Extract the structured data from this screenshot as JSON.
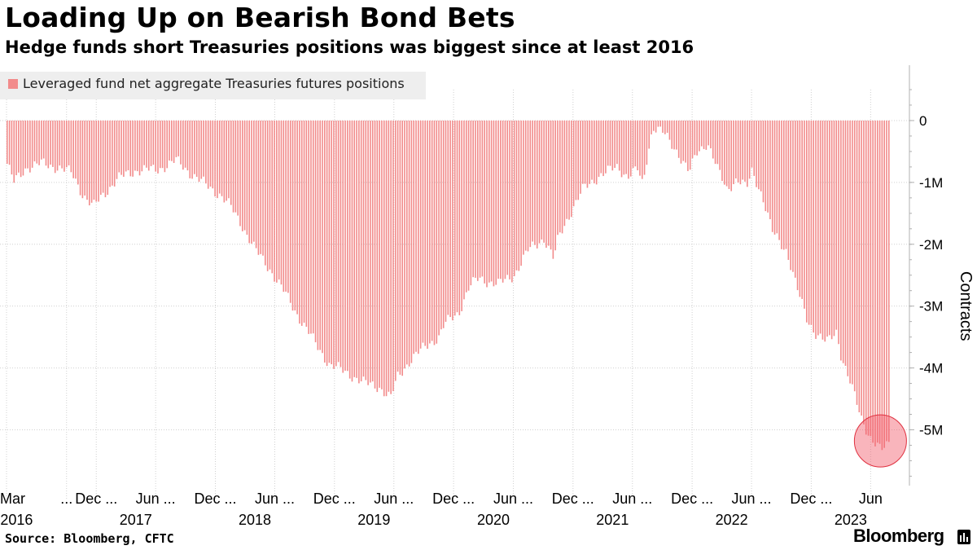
{
  "title": "Loading Up on Bearish Bond Bets",
  "subtitle": "Hedge funds short Treasuries positions was biggest since at least 2016",
  "source": "Source: Bloomberg, CFTC",
  "brand": "Bloomberg",
  "brand_icon": "bloomberg-terminal-icon",
  "colors": {
    "bar": "#f28b8b",
    "highlight_circle": "#f25a6a",
    "grid": "#d0d0d0",
    "legend_bg": "#eeeeee",
    "axis": "#b0b0b0"
  },
  "chart_data": {
    "type": "bar",
    "series": [
      {
        "name": "Leveraged fund net aggregate Treasuries futures positions",
        "anchors": [
          [
            "2016-03-01",
            -0.7
          ],
          [
            "2016-03-22",
            -1.0
          ],
          [
            "2016-05-01",
            -0.75
          ],
          [
            "2016-06-15",
            -0.7
          ],
          [
            "2016-08-01",
            -0.75
          ],
          [
            "2016-09-15",
            -0.85
          ],
          [
            "2016-10-20",
            -1.2
          ],
          [
            "2016-11-20",
            -1.4
          ],
          [
            "2016-12-20",
            -1.2
          ],
          [
            "2017-02-01",
            -0.95
          ],
          [
            "2017-04-01",
            -0.8
          ],
          [
            "2017-06-01",
            -0.8
          ],
          [
            "2017-08-01",
            -0.65
          ],
          [
            "2017-09-15",
            -0.85
          ],
          [
            "2017-11-01",
            -1.05
          ],
          [
            "2017-12-15",
            -1.2
          ],
          [
            "2018-01-15",
            -1.4
          ],
          [
            "2018-02-20",
            -1.7
          ],
          [
            "2018-04-01",
            -2.1
          ],
          [
            "2018-05-15",
            -2.4
          ],
          [
            "2018-07-01",
            -2.8
          ],
          [
            "2018-08-15",
            -3.2
          ],
          [
            "2018-10-01",
            -3.6
          ],
          [
            "2018-11-15",
            -3.95
          ],
          [
            "2019-01-15",
            -4.1
          ],
          [
            "2019-03-01",
            -4.25
          ],
          [
            "2019-04-15",
            -4.3
          ],
          [
            "2019-05-20",
            -4.5
          ],
          [
            "2019-06-10",
            -4.15
          ],
          [
            "2019-07-15",
            -3.9
          ],
          [
            "2019-09-15",
            -3.6
          ],
          [
            "2019-10-15",
            -3.5
          ],
          [
            "2019-11-01",
            -3.3
          ],
          [
            "2019-12-15",
            -3.1
          ],
          [
            "2020-01-15",
            -2.7
          ],
          [
            "2020-02-15",
            -2.55
          ],
          [
            "2020-03-15",
            -2.6
          ],
          [
            "2020-04-15",
            -2.65
          ],
          [
            "2020-06-01",
            -2.5
          ],
          [
            "2020-07-15",
            -2.1
          ],
          [
            "2020-09-01",
            -1.9
          ],
          [
            "2020-10-01",
            -2.25
          ],
          [
            "2020-10-15",
            -1.9
          ],
          [
            "2020-11-15",
            -1.55
          ],
          [
            "2021-01-01",
            -1.1
          ],
          [
            "2021-02-15",
            -0.9
          ],
          [
            "2021-04-15",
            -0.75
          ],
          [
            "2021-05-15",
            -0.9
          ],
          [
            "2021-06-15",
            -0.8
          ],
          [
            "2021-07-01",
            -1.05
          ],
          [
            "2021-07-15",
            -0.55
          ],
          [
            "2021-08-01",
            -0.1
          ],
          [
            "2021-09-01",
            -0.2
          ],
          [
            "2021-10-15",
            -0.5
          ],
          [
            "2021-11-20",
            -0.85
          ],
          [
            "2021-12-15",
            -0.5
          ],
          [
            "2022-01-15",
            -0.35
          ],
          [
            "2022-02-15",
            -0.8
          ],
          [
            "2022-03-15",
            -1.1
          ],
          [
            "2022-04-15",
            -0.95
          ],
          [
            "2022-05-15",
            -1.1
          ],
          [
            "2022-06-01",
            -0.8
          ],
          [
            "2022-07-01",
            -1.2
          ],
          [
            "2022-08-01",
            -1.8
          ],
          [
            "2022-09-15",
            -2.1
          ],
          [
            "2022-10-15",
            -2.7
          ],
          [
            "2022-11-15",
            -3.2
          ],
          [
            "2022-12-15",
            -3.45
          ],
          [
            "2023-01-15",
            -3.6
          ],
          [
            "2023-02-15",
            -3.4
          ],
          [
            "2023-03-01",
            -3.8
          ],
          [
            "2023-04-01",
            -4.3
          ],
          [
            "2023-05-01",
            -4.8
          ],
          [
            "2023-06-01",
            -5.15
          ],
          [
            "2023-07-01",
            -5.35
          ],
          [
            "2023-07-25",
            -5.2
          ]
        ]
      }
    ],
    "x_range": [
      "2016-03-01",
      "2023-07-25"
    ],
    "x_tick_labels": [
      {
        "date": "2016-03-01",
        "label": "Mar"
      },
      {
        "date": "2016-09-01",
        "label": "..."
      },
      {
        "date": "2016-12-01",
        "label": "Dec ..."
      },
      {
        "date": "2017-06-01",
        "label": "Jun ..."
      },
      {
        "date": "2017-12-01",
        "label": "Dec ..."
      },
      {
        "date": "2018-06-01",
        "label": "Jun ..."
      },
      {
        "date": "2018-12-01",
        "label": "Dec ..."
      },
      {
        "date": "2019-06-01",
        "label": "Jun ..."
      },
      {
        "date": "2019-12-01",
        "label": "Dec ..."
      },
      {
        "date": "2020-06-01",
        "label": "Jun ..."
      },
      {
        "date": "2020-12-01",
        "label": "Dec ..."
      },
      {
        "date": "2021-06-01",
        "label": "Jun ..."
      },
      {
        "date": "2021-12-01",
        "label": "Dec ..."
      },
      {
        "date": "2022-06-01",
        "label": "Jun ..."
      },
      {
        "date": "2022-12-01",
        "label": "Dec ..."
      },
      {
        "date": "2023-06-01",
        "label": "Jun"
      }
    ],
    "x_year_labels": [
      {
        "date": "2016-04-01",
        "label": "2016"
      },
      {
        "date": "2017-04-01",
        "label": "2017"
      },
      {
        "date": "2018-04-01",
        "label": "2018"
      },
      {
        "date": "2019-04-01",
        "label": "2019"
      },
      {
        "date": "2020-04-01",
        "label": "2020"
      },
      {
        "date": "2021-04-01",
        "label": "2021"
      },
      {
        "date": "2022-04-01",
        "label": "2022"
      },
      {
        "date": "2023-04-01",
        "label": "2023"
      }
    ],
    "y_ticks": [
      {
        "value": 0,
        "label": "0"
      },
      {
        "value": -1,
        "label": "-1M"
      },
      {
        "value": -2,
        "label": "-2M"
      },
      {
        "value": -3,
        "label": "-3M"
      },
      {
        "value": -4,
        "label": "-4M"
      },
      {
        "value": -5,
        "label": "-5M"
      }
    ],
    "ylim": [
      -5.85,
      0.5
    ],
    "ylabel": "Contracts",
    "legend": "top-left",
    "grid": true,
    "highlight": {
      "date": "2023-07-01",
      "value": -5.18,
      "shape": "circle"
    }
  }
}
